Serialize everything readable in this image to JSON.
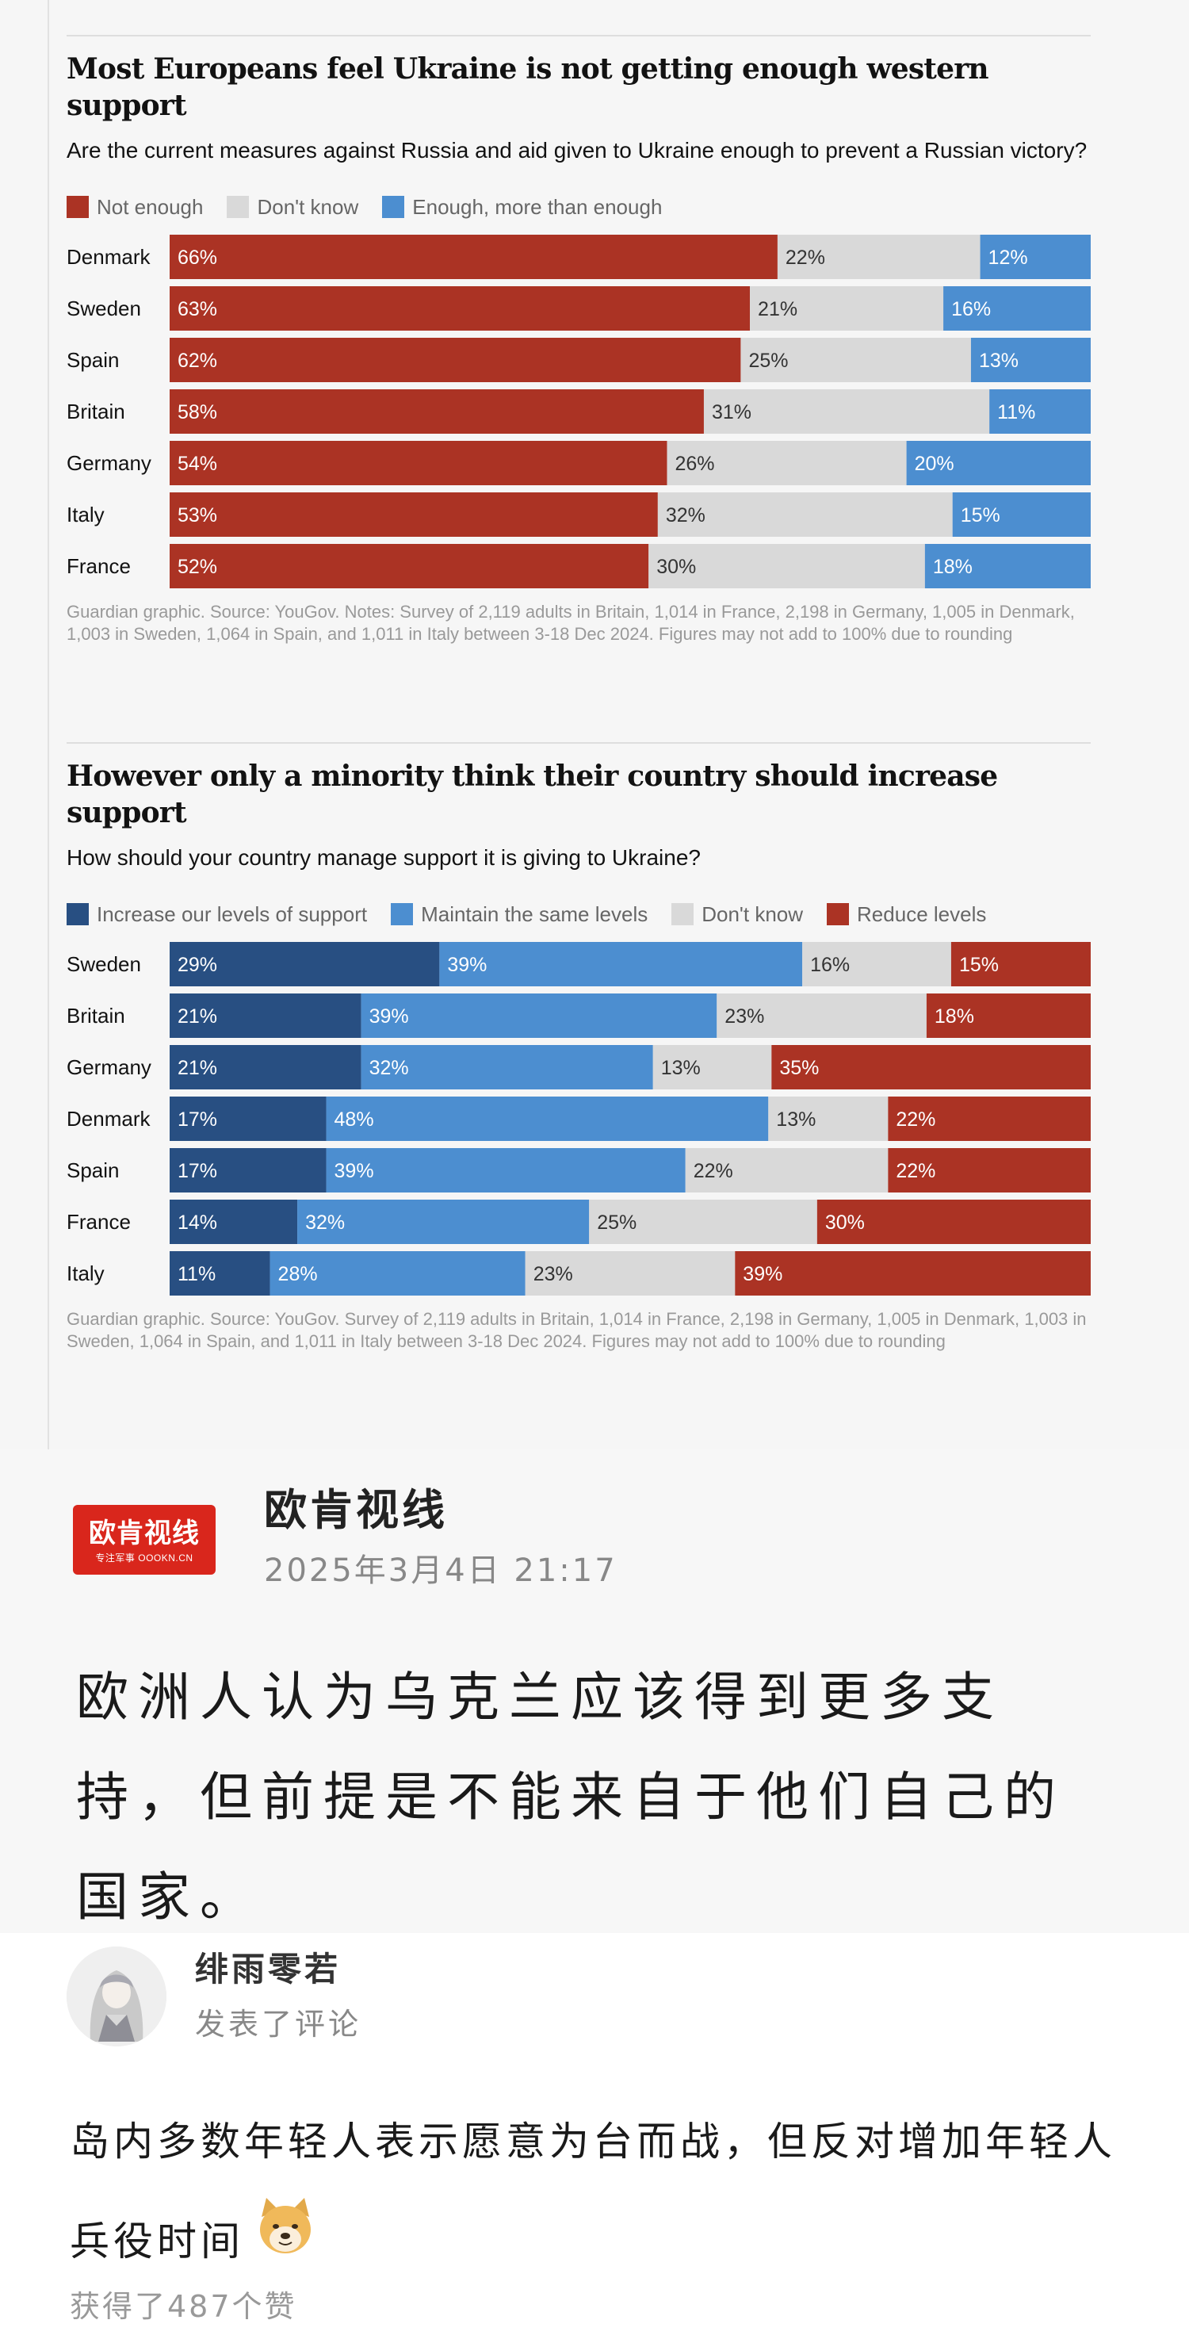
{
  "colors": {
    "not_enough": "#ab3324",
    "dont_know": "#d9d9d9",
    "enough": "#4c8ed0",
    "increase": "#284f82",
    "maintain": "#4c8ed0",
    "reduce": "#ab3324"
  },
  "chart_data": [
    {
      "type": "bar",
      "orientation": "horizontal-stacked-100",
      "title": "Most Europeans feel Ukraine is not getting enough western support",
      "subtitle": "Are the current measures against Russia and aid given to Ukraine enough to prevent a Russian victory?",
      "categories": [
        "Denmark",
        "Sweden",
        "Spain",
        "Britain",
        "Germany",
        "Italy",
        "France"
      ],
      "series": [
        {
          "name": "Not enough",
          "color": "#ab3324",
          "values": [
            66,
            63,
            62,
            58,
            54,
            53,
            52
          ]
        },
        {
          "name": "Don't know",
          "color": "#d9d9d9",
          "values": [
            22,
            21,
            25,
            31,
            26,
            32,
            30
          ]
        },
        {
          "name": "Enough, more than enough",
          "color": "#4c8ed0",
          "values": [
            12,
            16,
            13,
            11,
            20,
            15,
            18
          ]
        }
      ],
      "value_suffix": "%",
      "legend_position": "top",
      "note": "Guardian graphic. Source: YouGov. Notes: Survey of 2,119 adults in Britain, 1,014 in France, 2,198 in Germany, 1,005 in Denmark, 1,003 in Sweden, 1,064 in Spain, and 1,011 in Italy between 3-18 Dec 2024. Figures may not add to 100% due to rounding"
    },
    {
      "type": "bar",
      "orientation": "horizontal-stacked-100",
      "title": "However only a minority think their country should increase support",
      "subtitle": "How should your country manage support it is giving to Ukraine?",
      "categories": [
        "Sweden",
        "Britain",
        "Germany",
        "Denmark",
        "Spain",
        "France",
        "Italy"
      ],
      "series": [
        {
          "name": "Increase our levels of support",
          "color": "#284f82",
          "values": [
            29,
            21,
            21,
            17,
            17,
            14,
            11
          ]
        },
        {
          "name": "Maintain the same levels",
          "color": "#4c8ed0",
          "values": [
            39,
            39,
            32,
            48,
            39,
            32,
            28
          ]
        },
        {
          "name": "Don't know",
          "color": "#d9d9d9",
          "values": [
            16,
            23,
            13,
            13,
            22,
            25,
            23
          ]
        },
        {
          "name": "Reduce levels",
          "color": "#ab3324",
          "values": [
            15,
            18,
            35,
            22,
            22,
            30,
            39
          ]
        }
      ],
      "value_suffix": "%",
      "legend_position": "top",
      "note": "Guardian graphic. Source: YouGov. Survey of 2,119 adults in Britain, 1,014 in France, 2,198 in Germany, 1,005 in Denmark, 1,003 in Sweden, 1,064 in Spain, and 1,011 in Italy between 3-18 Dec 2024. Figures may not add to 100% due to rounding"
    }
  ],
  "post": {
    "logo_text": "欧肯视线",
    "logo_subtext": "专注军事 OOOKN.CN",
    "author": "欧肯视线",
    "time": "2025年3月4日 21:17",
    "text": "欧洲人认为乌克兰应该得到更多支持，但前提是不能来自于他们自己的国家。"
  },
  "comment": {
    "avatar_icon": "anime-avatar-icon",
    "user": "绯雨零若",
    "action": "发表了评论",
    "text": "岛内多数年轻人表示愿意为台而战，但反对增加年轻人兵役时间",
    "emoji_icon": "doge-emoji-icon",
    "likes": "获得了487个赞"
  }
}
